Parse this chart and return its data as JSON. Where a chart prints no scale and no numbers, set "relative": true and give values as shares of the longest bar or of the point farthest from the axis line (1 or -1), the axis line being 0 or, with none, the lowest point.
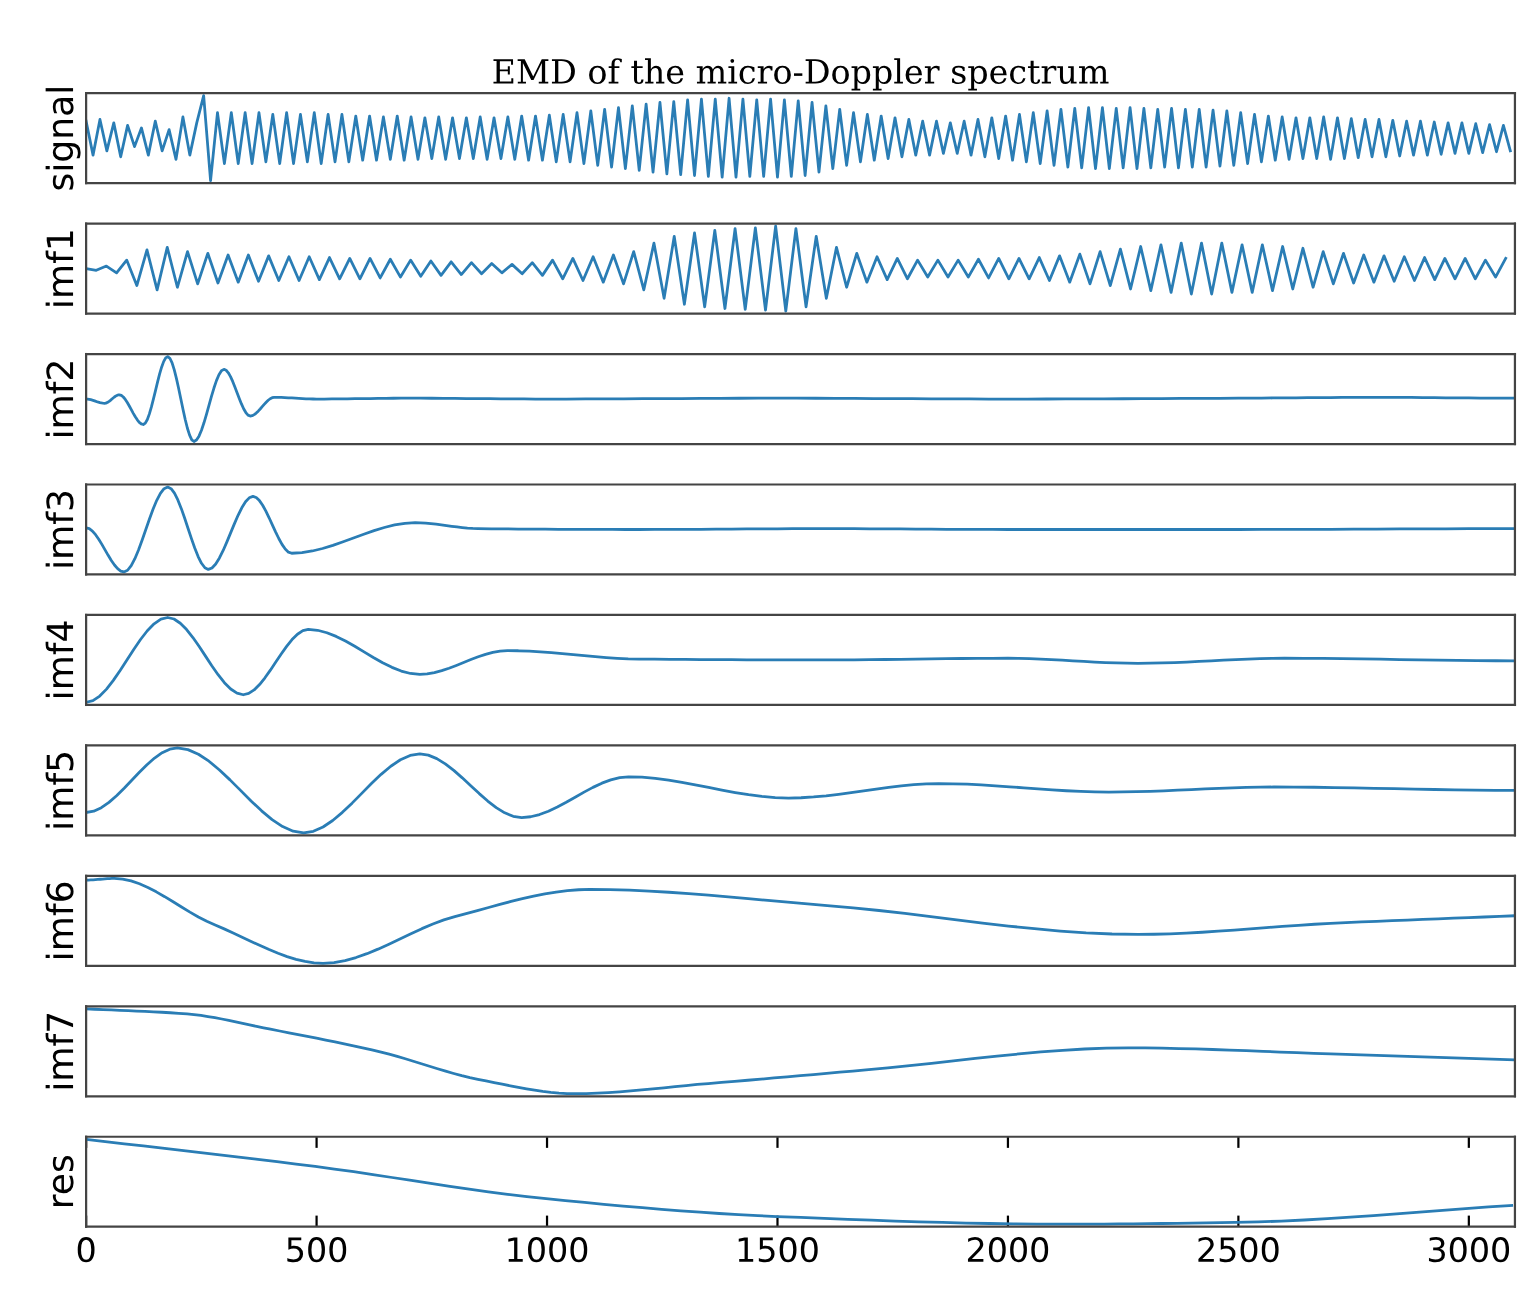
{
  "chart_data": [
    {
      "type": "line",
      "title": "EMD of the micro-Doppler spectrum",
      "ylabel": "signal",
      "relative": true,
      "xlim": [
        0,
        3100
      ],
      "tick_labels": false,
      "series": [
        {
          "color": "#2a7db5",
          "x": [
            0,
            15,
            30,
            45,
            60,
            75,
            90,
            105,
            120,
            135,
            150,
            165,
            180,
            195,
            210,
            225,
            240,
            255,
            270,
            285,
            300,
            315,
            330,
            345,
            360,
            375,
            390,
            405,
            420,
            435,
            450,
            465,
            480,
            495,
            510,
            525,
            540,
            555,
            570,
            585,
            600,
            615,
            630,
            645,
            660,
            675,
            690,
            705,
            720,
            735,
            750,
            765,
            780,
            795,
            810,
            825,
            840,
            855,
            870,
            885,
            900,
            915,
            930,
            945,
            960,
            975,
            990,
            1005,
            1020,
            1035,
            1050,
            1065,
            1080,
            1095,
            1110,
            1125,
            1140,
            1155,
            1170,
            1185,
            1200,
            1215,
            1230,
            1245,
            1260,
            1275,
            1290,
            1305,
            1320,
            1335,
            1350,
            1365,
            1380,
            1395,
            1410,
            1425,
            1440,
            1455,
            1470,
            1485,
            1500,
            1515,
            1530,
            1545,
            1560,
            1575,
            1590,
            1605,
            1620,
            1635,
            1650,
            1665,
            1680,
            1695,
            1710,
            1725,
            1740,
            1755,
            1770,
            1785,
            1800,
            1815,
            1830,
            1845,
            1860,
            1875,
            1890,
            1905,
            1920,
            1935,
            1950,
            1965,
            1980,
            1995,
            2010,
            2025,
            2040,
            2055,
            2070,
            2085,
            2100,
            2115,
            2130,
            2145,
            2160,
            2175,
            2190,
            2205,
            2220,
            2235,
            2250,
            2265,
            2280,
            2295,
            2310,
            2325,
            2340,
            2355,
            2370,
            2385,
            2400,
            2415,
            2430,
            2445,
            2460,
            2475,
            2490,
            2505,
            2520,
            2535,
            2550,
            2565,
            2580,
            2595,
            2610,
            2625,
            2640,
            2655,
            2670,
            2685,
            2700,
            2715,
            2730,
            2745,
            2760,
            2775,
            2790,
            2805,
            2820,
            2835,
            2850,
            2865,
            2880,
            2895,
            2910,
            2925,
            2940,
            2955,
            2970,
            2985,
            3000,
            3015,
            3030,
            3045,
            3060,
            3075,
            3090
          ],
          "values": [
            0.7,
            0.3,
            0.72,
            0.35,
            0.68,
            0.28,
            0.65,
            0.4,
            0.62,
            0.3,
            0.7,
            0.35,
            0.6,
            0.25,
            0.75,
            0.3,
            0.68,
            1.0,
            0.0,
            0.8,
            0.2,
            0.8,
            0.2,
            0.8,
            0.2,
            0.8,
            0.22,
            0.78,
            0.2,
            0.8,
            0.2,
            0.78,
            0.22,
            0.8,
            0.2,
            0.78,
            0.22,
            0.78,
            0.22,
            0.76,
            0.24,
            0.76,
            0.24,
            0.75,
            0.25,
            0.76,
            0.24,
            0.75,
            0.25,
            0.74,
            0.26,
            0.75,
            0.25,
            0.74,
            0.26,
            0.74,
            0.26,
            0.75,
            0.25,
            0.74,
            0.26,
            0.75,
            0.25,
            0.76,
            0.24,
            0.76,
            0.24,
            0.77,
            0.22,
            0.78,
            0.22,
            0.8,
            0.2,
            0.82,
            0.18,
            0.84,
            0.16,
            0.86,
            0.14,
            0.88,
            0.12,
            0.9,
            0.1,
            0.92,
            0.08,
            0.93,
            0.07,
            0.95,
            0.06,
            0.96,
            0.05,
            0.96,
            0.04,
            0.97,
            0.04,
            0.96,
            0.05,
            0.95,
            0.05,
            0.96,
            0.04,
            0.95,
            0.05,
            0.94,
            0.06,
            0.92,
            0.1,
            0.88,
            0.14,
            0.84,
            0.18,
            0.8,
            0.22,
            0.78,
            0.24,
            0.76,
            0.26,
            0.74,
            0.28,
            0.72,
            0.3,
            0.7,
            0.3,
            0.7,
            0.32,
            0.68,
            0.32,
            0.7,
            0.3,
            0.72,
            0.28,
            0.74,
            0.26,
            0.76,
            0.24,
            0.78,
            0.22,
            0.8,
            0.2,
            0.82,
            0.18,
            0.84,
            0.16,
            0.85,
            0.15,
            0.86,
            0.14,
            0.86,
            0.14,
            0.85,
            0.15,
            0.86,
            0.14,
            0.85,
            0.15,
            0.84,
            0.16,
            0.85,
            0.15,
            0.84,
            0.16,
            0.84,
            0.16,
            0.83,
            0.17,
            0.82,
            0.18,
            0.8,
            0.2,
            0.78,
            0.22,
            0.76,
            0.24,
            0.75,
            0.25,
            0.74,
            0.26,
            0.74,
            0.26,
            0.75,
            0.25,
            0.74,
            0.26,
            0.73,
            0.27,
            0.72,
            0.28,
            0.72,
            0.28,
            0.71,
            0.29,
            0.7,
            0.3,
            0.7,
            0.3,
            0.69,
            0.31,
            0.68,
            0.32,
            0.68,
            0.32,
            0.67,
            0.33,
            0.66,
            0.34,
            0.65,
            0.35
          ]
        }
      ]
    },
    {
      "type": "line",
      "ylabel": "imf1",
      "relative": true,
      "xlim": [
        0,
        3100
      ],
      "tick_labels": false,
      "series": [
        {
          "color": "#2a7db5",
          "x": [
            0,
            22,
            44,
            66,
            88,
            110,
            132,
            154,
            176,
            198,
            220,
            242,
            264,
            286,
            308,
            330,
            352,
            374,
            396,
            418,
            440,
            462,
            484,
            506,
            528,
            550,
            572,
            594,
            616,
            638,
            660,
            682,
            704,
            726,
            748,
            770,
            792,
            814,
            836,
            858,
            880,
            902,
            924,
            946,
            968,
            990,
            1012,
            1034,
            1056,
            1078,
            1100,
            1122,
            1144,
            1166,
            1188,
            1210,
            1232,
            1254,
            1276,
            1298,
            1320,
            1342,
            1364,
            1386,
            1408,
            1430,
            1452,
            1474,
            1496,
            1518,
            1540,
            1562,
            1584,
            1606,
            1628,
            1650,
            1672,
            1694,
            1716,
            1738,
            1760,
            1782,
            1804,
            1826,
            1848,
            1870,
            1892,
            1914,
            1936,
            1958,
            1980,
            2002,
            2024,
            2046,
            2068,
            2090,
            2112,
            2134,
            2156,
            2178,
            2200,
            2222,
            2244,
            2266,
            2288,
            2310,
            2332,
            2354,
            2376,
            2398,
            2420,
            2442,
            2464,
            2486,
            2508,
            2530,
            2552,
            2574,
            2596,
            2618,
            2640,
            2662,
            2684,
            2706,
            2728,
            2750,
            2772,
            2794,
            2816,
            2838,
            2860,
            2882,
            2904,
            2926,
            2948,
            2970,
            2992,
            3014,
            3036,
            3058,
            3080
          ],
          "values": [
            0.5,
            0.48,
            0.53,
            0.45,
            0.6,
            0.3,
            0.72,
            0.25,
            0.75,
            0.28,
            0.7,
            0.32,
            0.68,
            0.33,
            0.66,
            0.34,
            0.66,
            0.35,
            0.65,
            0.36,
            0.64,
            0.36,
            0.64,
            0.37,
            0.63,
            0.38,
            0.62,
            0.38,
            0.62,
            0.39,
            0.61,
            0.4,
            0.6,
            0.41,
            0.59,
            0.42,
            0.58,
            0.43,
            0.57,
            0.44,
            0.56,
            0.45,
            0.55,
            0.44,
            0.57,
            0.42,
            0.6,
            0.38,
            0.62,
            0.36,
            0.64,
            0.34,
            0.66,
            0.32,
            0.7,
            0.25,
            0.8,
            0.15,
            0.88,
            0.08,
            0.92,
            0.05,
            0.95,
            0.03,
            0.97,
            0.02,
            0.98,
            0.01,
            1.0,
            0.0,
            0.97,
            0.05,
            0.88,
            0.15,
            0.75,
            0.28,
            0.68,
            0.34,
            0.64,
            0.37,
            0.62,
            0.38,
            0.6,
            0.4,
            0.6,
            0.4,
            0.6,
            0.4,
            0.61,
            0.39,
            0.62,
            0.38,
            0.62,
            0.38,
            0.63,
            0.36,
            0.65,
            0.34,
            0.67,
            0.32,
            0.7,
            0.3,
            0.73,
            0.26,
            0.76,
            0.24,
            0.78,
            0.22,
            0.8,
            0.2,
            0.8,
            0.2,
            0.8,
            0.22,
            0.78,
            0.22,
            0.78,
            0.24,
            0.76,
            0.26,
            0.74,
            0.28,
            0.7,
            0.32,
            0.68,
            0.33,
            0.66,
            0.34,
            0.65,
            0.35,
            0.64,
            0.36,
            0.63,
            0.37,
            0.62,
            0.38,
            0.62,
            0.38,
            0.6,
            0.4,
            0.62
          ]
        }
      ]
    },
    {
      "type": "line",
      "ylabel": "imf2",
      "relative": true,
      "xlim": [
        0,
        3100
      ],
      "tick_labels": false,
      "series": [
        {
          "color": "#2a7db5",
          "x": [
            0,
            40,
            72,
            124,
            177,
            234,
            299,
            356,
            408,
            500,
            700,
            1000,
            1500,
            2000,
            2500,
            2800,
            3100
          ],
          "values": [
            0.5,
            0.45,
            0.55,
            0.2,
            1.0,
            0.0,
            0.85,
            0.3,
            0.52,
            0.5,
            0.51,
            0.5,
            0.51,
            0.5,
            0.51,
            0.52,
            0.51
          ]
        }
      ]
    },
    {
      "type": "line",
      "ylabel": "imf3",
      "relative": true,
      "xlim": [
        0,
        3100
      ],
      "tick_labels": false,
      "series": [
        {
          "color": "#2a7db5",
          "x": [
            0,
            82,
            177,
            265,
            362,
            446,
            714,
            850,
            1200,
            1600,
            2000,
            2500,
            3100
          ],
          "values": [
            0.52,
            0.0,
            1.0,
            0.03,
            0.89,
            0.22,
            0.58,
            0.51,
            0.5,
            0.51,
            0.5,
            0.5,
            0.51
          ]
        }
      ]
    },
    {
      "type": "line",
      "ylabel": "imf4",
      "relative": true,
      "xlim": [
        0,
        3100
      ],
      "tick_labels": false,
      "series": [
        {
          "color": "#2a7db5",
          "x": [
            0,
            177,
            341,
            482,
            724,
            914,
            1200,
            1600,
            2000,
            2282,
            2600,
            3100
          ],
          "values": [
            0,
            1,
            0.09,
            0.86,
            0.33,
            0.61,
            0.51,
            0.5,
            0.52,
            0.46,
            0.52,
            0.49
          ]
        }
      ]
    },
    {
      "type": "line",
      "ylabel": "imf5",
      "relative": true,
      "xlim": [
        0,
        3100
      ],
      "tick_labels": false,
      "series": [
        {
          "color": "#2a7db5",
          "x": [
            0,
            198,
            472,
            724,
            945,
            1177,
            1524,
            1850,
            2219,
            2577,
            3100
          ],
          "values": [
            0.24,
            1,
            0,
            0.93,
            0.18,
            0.66,
            0.41,
            0.58,
            0.48,
            0.54,
            0.5
          ]
        }
      ]
    },
    {
      "type": "line",
      "ylabel": "imf6",
      "relative": true,
      "xlim": [
        0,
        3100
      ],
      "tick_labels": false,
      "series": [
        {
          "color": "#2a7db5",
          "x": [
            0,
            61,
            280,
            514,
            800,
            1093,
            1608,
            2282,
            2700,
            3100
          ],
          "values": [
            0.98,
            1,
            0.45,
            0,
            0.55,
            0.87,
            0.68,
            0.34,
            0.47,
            0.56
          ]
        }
      ]
    },
    {
      "type": "line",
      "ylabel": "imf7",
      "relative": true,
      "xlim": [
        0,
        3100
      ],
      "tick_labels": false,
      "series": [
        {
          "color": "#2a7db5",
          "x": [
            0,
            219,
            400,
            640,
            850,
            1061,
            1350,
            1692,
            2261,
            2700,
            3100
          ],
          "values": [
            1,
            0.94,
            0.76,
            0.49,
            0.17,
            0,
            0.12,
            0.28,
            0.54,
            0.47,
            0.4
          ]
        }
      ]
    },
    {
      "type": "line",
      "ylabel": "res",
      "relative": true,
      "xlim": [
        0,
        3100
      ],
      "xticks": [
        0,
        500,
        1000,
        1500,
        2000,
        2500,
        3000
      ],
      "tick_labels": "x",
      "series": [
        {
          "color": "#2a7db5",
          "x": [
            0,
            497,
            998,
            1499,
            2114,
            2493,
            3093
          ],
          "values": [
            1,
            0.68,
            0.3,
            0.09,
            0,
            0.02,
            0.22
          ]
        }
      ]
    }
  ]
}
